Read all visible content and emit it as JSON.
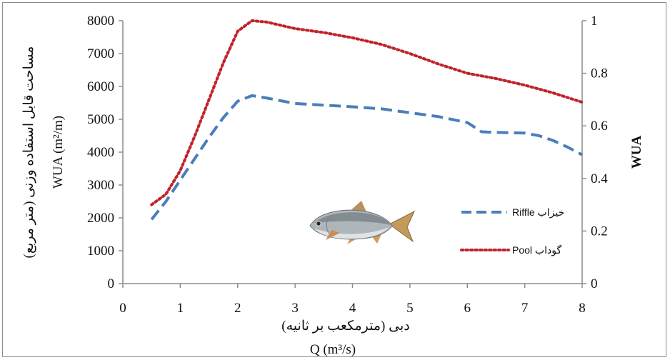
{
  "chart_data": {
    "type": "line",
    "x_label_fa": "دبی (مترمکعب بر ثانیه)",
    "x_label_en": "Q (m³/s)",
    "y_left_label_fa": "مساحت قابل استفاده وزنی (متر مربع)",
    "y_left_label_en": "WUA (m²/m)",
    "y_right_label": "WUA",
    "xlim": [
      0,
      8
    ],
    "ylim_left": [
      0,
      8000
    ],
    "ylim_right": [
      0,
      1
    ],
    "x_ticks": [
      "0",
      "1",
      "2",
      "3",
      "4",
      "5",
      "6",
      "7",
      "8"
    ],
    "y_left_ticks": [
      "0",
      "1000",
      "2000",
      "3000",
      "4000",
      "5000",
      "6000",
      "7000",
      "8000"
    ],
    "y_right_ticks": [
      "0",
      "0.2",
      "0.4",
      "0.6",
      "0.8",
      "1"
    ],
    "grid": false,
    "legend_position": "right-center",
    "series": [
      {
        "name": "خیزاب Riffle",
        "axis": "left",
        "color": "#4a7ebb",
        "style": "dashed",
        "x": [
          0.5,
          0.75,
          1.0,
          1.25,
          1.5,
          1.75,
          2.0,
          2.25,
          2.5,
          3.0,
          3.5,
          4.0,
          4.5,
          5.0,
          5.5,
          6.0,
          6.25,
          6.5,
          7.0,
          7.25,
          7.5,
          7.75,
          8.0
        ],
        "y": [
          1950,
          2500,
          3150,
          3800,
          4450,
          5050,
          5550,
          5720,
          5650,
          5480,
          5430,
          5380,
          5320,
          5200,
          5080,
          4900,
          4620,
          4600,
          4580,
          4500,
          4350,
          4150,
          3920
        ]
      },
      {
        "name": "گوداب Pool",
        "axis": "right",
        "color": "#c0232b",
        "style": "dotted",
        "x": [
          0.5,
          0.75,
          1.0,
          1.25,
          1.5,
          1.75,
          2.0,
          2.25,
          2.5,
          3.0,
          3.5,
          4.0,
          4.5,
          5.0,
          5.5,
          6.0,
          6.5,
          7.0,
          7.5,
          8.0
        ],
        "y": [
          0.3,
          0.34,
          0.43,
          0.56,
          0.7,
          0.84,
          0.96,
          1.0,
          0.995,
          0.97,
          0.955,
          0.935,
          0.91,
          0.875,
          0.835,
          0.8,
          0.78,
          0.755,
          0.725,
          0.69
        ]
      }
    ]
  }
}
